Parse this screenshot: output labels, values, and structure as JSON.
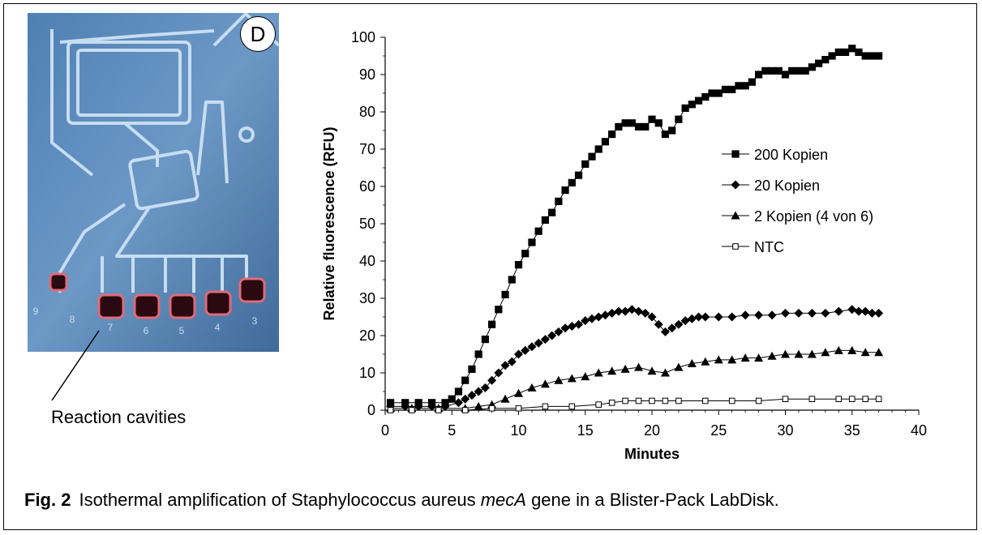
{
  "photo": {
    "panel_label": "D",
    "cavity_numbers": [
      "9",
      "8",
      "7",
      "6",
      "5",
      "4",
      "3"
    ],
    "callout": "Reaction cavities"
  },
  "caption": {
    "fig": "Fig. 2",
    "text_before": "Isothermal amplification of Staphylococcus aureus ",
    "gene": "mecA",
    "text_after": " gene in a Blister-Pack LabDisk."
  },
  "chart_data": {
    "type": "line",
    "xlabel": "Minutes",
    "ylabel": "Relative fluorescence (RFU)",
    "xlim": [
      0,
      40
    ],
    "ylim": [
      0,
      100
    ],
    "xticks": [
      0,
      5,
      10,
      15,
      20,
      25,
      30,
      35,
      40
    ],
    "yticks": [
      0,
      10,
      20,
      30,
      40,
      50,
      60,
      70,
      80,
      90,
      100
    ],
    "grid": false,
    "legend_position": "right",
    "series": [
      {
        "name": "200 Kopien",
        "marker": "square-filled",
        "x": [
          0.4,
          1.5,
          2.5,
          3.5,
          4.5,
          5.0,
          5.5,
          6.0,
          6.5,
          7.0,
          7.5,
          8.0,
          8.5,
          9.0,
          9.5,
          10.0,
          10.5,
          11.0,
          11.5,
          12.0,
          12.5,
          13.0,
          13.5,
          14.0,
          14.5,
          15.0,
          15.5,
          16.0,
          16.5,
          17.0,
          17.5,
          18.0,
          18.5,
          19.0,
          19.5,
          20.0,
          20.5,
          21.0,
          21.5,
          22.0,
          22.5,
          23.0,
          23.5,
          24.0,
          24.5,
          25.0,
          25.5,
          26.0,
          26.5,
          27.0,
          27.5,
          28.0,
          28.5,
          29.0,
          29.5,
          30.0,
          30.5,
          31.0,
          31.5,
          32.0,
          32.5,
          33.0,
          33.5,
          34.0,
          34.5,
          35.0,
          35.5,
          36.0,
          36.5,
          37.0
        ],
        "y": [
          2,
          2,
          2,
          2,
          2,
          3,
          5,
          8,
          11,
          15,
          19,
          23,
          27,
          31,
          35,
          39,
          42,
          45,
          48,
          51,
          53,
          56,
          59,
          61,
          63,
          66,
          68,
          70,
          72,
          74,
          76,
          77,
          77,
          76,
          76,
          78,
          77,
          74,
          75,
          78,
          81,
          82,
          83,
          84,
          85,
          85,
          86,
          86,
          87,
          87,
          88,
          90,
          91,
          91,
          91,
          90,
          91,
          91,
          91,
          92,
          93,
          94,
          95,
          96,
          96,
          97,
          96,
          95,
          95,
          95
        ]
      },
      {
        "name": "20 Kopien",
        "marker": "diamond-filled",
        "x": [
          0.4,
          1.5,
          2.5,
          3.5,
          4.5,
          5.5,
          6.0,
          6.5,
          7.0,
          7.5,
          8.0,
          8.5,
          9.0,
          9.5,
          10.0,
          10.5,
          11.0,
          11.5,
          12.0,
          12.5,
          13.0,
          13.5,
          14.0,
          14.5,
          15.0,
          15.5,
          16.0,
          16.5,
          17.0,
          17.5,
          18.0,
          18.5,
          19.0,
          19.5,
          20.0,
          20.5,
          21.0,
          21.5,
          22.0,
          22.5,
          23.0,
          23.5,
          24.0,
          25.0,
          26.0,
          27.0,
          28.0,
          29.0,
          30.0,
          31.0,
          32.0,
          33.0,
          34.0,
          35.0,
          35.5,
          36.0,
          36.5,
          37.0
        ],
        "y": [
          1,
          1,
          1,
          1,
          1,
          2,
          3,
          4,
          5,
          6,
          8,
          10,
          12,
          13,
          15,
          16,
          17,
          18,
          19,
          20,
          21,
          22,
          22.5,
          23,
          24,
          24.5,
          25,
          25.5,
          26,
          26.5,
          26.5,
          27,
          26.5,
          26,
          25,
          23,
          21,
          22,
          23,
          24,
          24.5,
          25,
          25,
          25,
          25,
          25.5,
          25.5,
          25.5,
          26,
          26,
          26,
          26,
          26.5,
          27,
          26.5,
          26.5,
          26,
          26
        ]
      },
      {
        "name": "2 Kopien (4 von 6)",
        "marker": "triangle-filled",
        "x": [
          0.4,
          2.0,
          4.0,
          6.0,
          7.0,
          8.0,
          9.0,
          10.0,
          11.0,
          12.0,
          13.0,
          14.0,
          15.0,
          16.0,
          17.0,
          18.0,
          19.0,
          20.0,
          21.0,
          22.0,
          23.0,
          24.0,
          25.0,
          26.0,
          27.0,
          28.0,
          29.0,
          30.0,
          31.0,
          32.0,
          33.0,
          34.0,
          35.0,
          36.0,
          37.0
        ],
        "y": [
          0.5,
          0.5,
          0.5,
          0.5,
          1,
          1.5,
          3,
          4.5,
          6,
          7,
          8,
          8.5,
          9,
          10,
          10.5,
          11,
          11.5,
          10.5,
          10,
          11.5,
          12.5,
          13,
          13.5,
          13.5,
          14,
          14,
          14.5,
          15,
          15,
          15,
          15.5,
          16,
          16,
          15.5,
          15.5
        ]
      },
      {
        "name": "NTC",
        "marker": "square-open",
        "x": [
          0.4,
          2.0,
          4.0,
          6.0,
          8.0,
          10.0,
          12.0,
          14.0,
          16.0,
          17.0,
          18.0,
          19.0,
          20.0,
          21.0,
          22.0,
          24.0,
          26.0,
          28.0,
          30.0,
          32.0,
          34.0,
          35.0,
          36.0,
          37.0
        ],
        "y": [
          0,
          0,
          0,
          0,
          0.5,
          0.5,
          1,
          1,
          1.5,
          2,
          2.5,
          2.5,
          2.5,
          2.5,
          2.5,
          2.5,
          2.5,
          2.5,
          3,
          3,
          3,
          3,
          3,
          3
        ]
      }
    ]
  }
}
